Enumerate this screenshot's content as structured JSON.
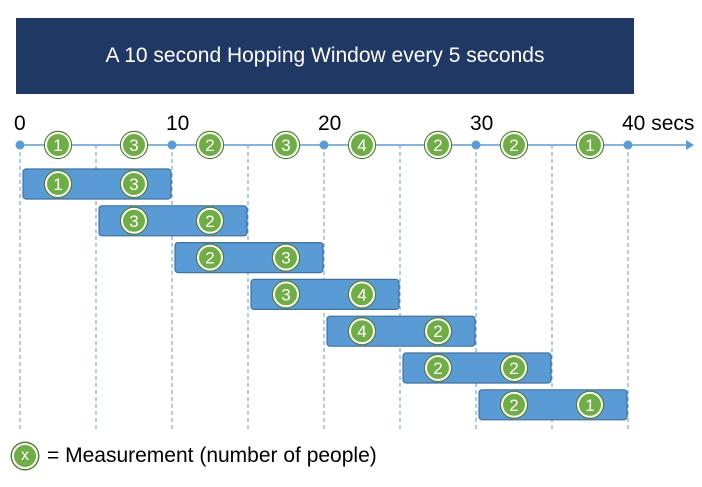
{
  "title": "A 10 second Hopping Window every 5 seconds",
  "axis": {
    "ticks": [
      {
        "t": 0,
        "label": "0"
      },
      {
        "t": 10,
        "label": "10"
      },
      {
        "t": 20,
        "label": "20"
      },
      {
        "t": 30,
        "label": "30"
      },
      {
        "t": 40,
        "label": "40 secs"
      }
    ],
    "min": 0,
    "max": 40,
    "window_size_seconds": 10,
    "hop_seconds": 5
  },
  "measurements": [
    {
      "t": 2.5,
      "value": "1"
    },
    {
      "t": 7.5,
      "value": "3"
    },
    {
      "t": 12.5,
      "value": "2"
    },
    {
      "t": 17.5,
      "value": "3"
    },
    {
      "t": 22.5,
      "value": "4"
    },
    {
      "t": 27.5,
      "value": "2"
    },
    {
      "t": 32.5,
      "value": "2"
    },
    {
      "t": 37.5,
      "value": "1"
    }
  ],
  "windows": [
    {
      "start": 0,
      "end": 10,
      "values": [
        {
          "t": 2.5,
          "value": "1"
        },
        {
          "t": 7.5,
          "value": "3"
        }
      ]
    },
    {
      "start": 5,
      "end": 15,
      "values": [
        {
          "t": 7.5,
          "value": "3"
        },
        {
          "t": 12.5,
          "value": "2"
        }
      ]
    },
    {
      "start": 10,
      "end": 20,
      "values": [
        {
          "t": 12.5,
          "value": "2"
        },
        {
          "t": 17.5,
          "value": "3"
        }
      ]
    },
    {
      "start": 15,
      "end": 25,
      "values": [
        {
          "t": 17.5,
          "value": "3"
        },
        {
          "t": 22.5,
          "value": "4"
        }
      ]
    },
    {
      "start": 20,
      "end": 30,
      "values": [
        {
          "t": 22.5,
          "value": "4"
        },
        {
          "t": 27.5,
          "value": "2"
        }
      ]
    },
    {
      "start": 25,
      "end": 35,
      "values": [
        {
          "t": 27.5,
          "value": "2"
        },
        {
          "t": 32.5,
          "value": "2"
        }
      ]
    },
    {
      "start": 30,
      "end": 40,
      "values": [
        {
          "t": 32.5,
          "value": "2"
        },
        {
          "t": 37.5,
          "value": "1"
        }
      ]
    }
  ],
  "legend": {
    "symbol": "x",
    "text": "= Measurement (number of people)"
  },
  "colors": {
    "banner": "#203864",
    "axis": "#5b9bd5",
    "window_fill": "#5b9bd5",
    "window_border": "#41719c",
    "badge_fill": "#70ad47",
    "badge_border": "#548235"
  }
}
